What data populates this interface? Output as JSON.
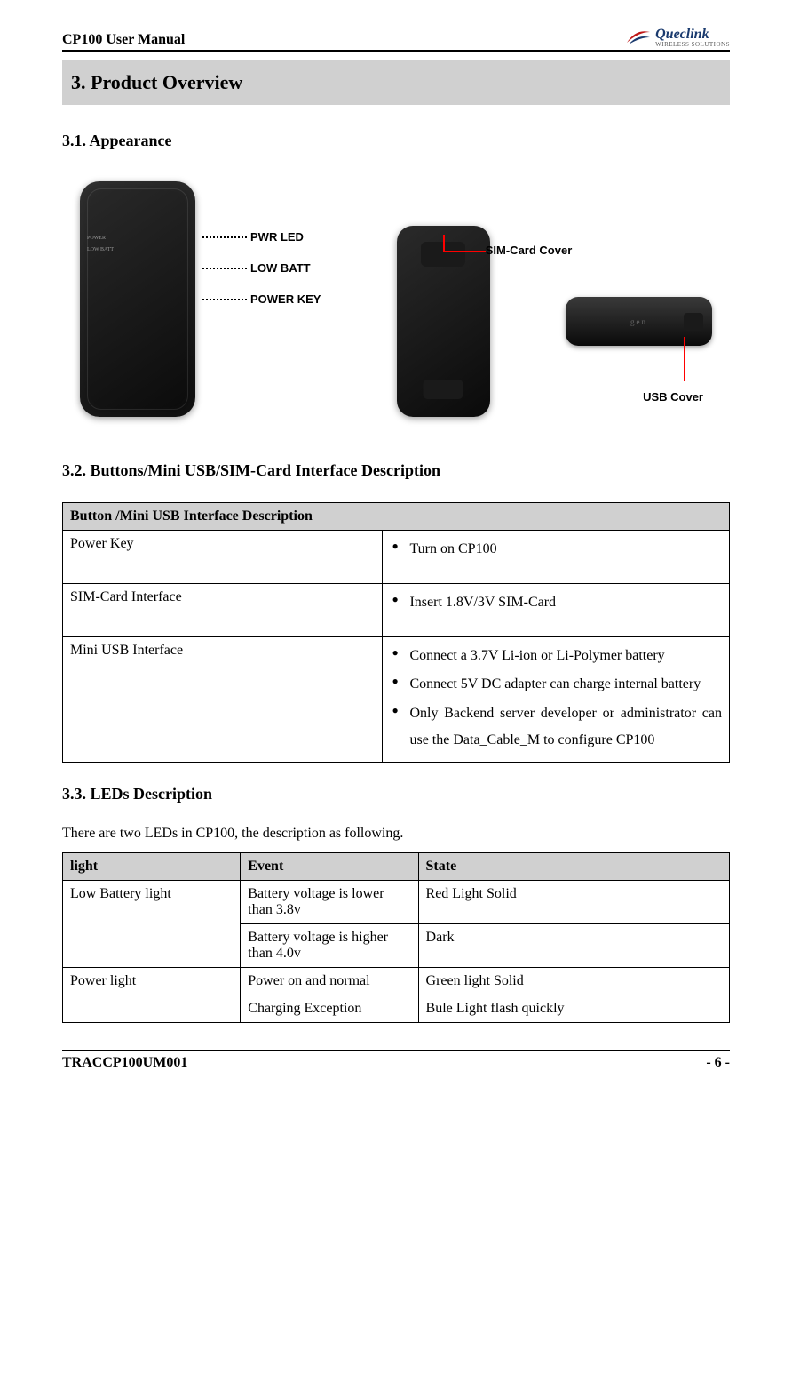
{
  "header": {
    "doc_title": "CP100 User Manual",
    "logo_main": "Queclink",
    "logo_sub": "WIRELESS SOLUTIONS"
  },
  "section": {
    "title": "3. Product Overview",
    "sub1_title": "3.1. Appearance",
    "sub2_title": "3.2. Buttons/Mini USB/SIM-Card Interface Description",
    "sub3_title": "3.3. LEDs Description"
  },
  "appearance": {
    "front": {
      "led1_small": "POWER",
      "led2_small": "LOW BATT",
      "label_pwr": "PWR LED",
      "label_lowbatt": "LOW BATT",
      "label_powerkey": "POWER KEY"
    },
    "back": {
      "sim_label": "SIM-Card Cover"
    },
    "side": {
      "side_text": "gen",
      "usb_label": "USB Cover"
    }
  },
  "interface_table": {
    "header": "Button /Mini USB Interface Description",
    "rows": [
      {
        "name": "Power Key",
        "items": [
          "Turn on CP100"
        ]
      },
      {
        "name": "SIM-Card Interface",
        "items": [
          "Insert 1.8V/3V SIM-Card"
        ]
      },
      {
        "name": "Mini USB Interface",
        "items": [
          "Connect a 3.7V Li-ion or Li-Polymer battery",
          "Connect 5V DC adapter can charge internal battery",
          "Only Backend server developer or administrator can use the Data_Cable_M to configure CP100"
        ]
      }
    ]
  },
  "led_section": {
    "intro": "There are two LEDs in CP100, the description as following.",
    "headers": [
      "light",
      "Event",
      "State"
    ],
    "rows": [
      {
        "light": "Low Battery light",
        "event": "Battery voltage is lower than 3.8v",
        "state": "Red Light Solid",
        "rowspan": 2
      },
      {
        "light": "",
        "event": "Battery voltage is higher than 4.0v",
        "state": "Dark"
      },
      {
        "light": "Power light",
        "event": "Power on and normal",
        "state": "Green light Solid",
        "rowspan": 2
      },
      {
        "light": "",
        "event": "Charging Exception",
        "state": "Bule Light flash quickly"
      }
    ]
  },
  "footer": {
    "left": "TRACCP100UM001",
    "right": "- 6 -"
  },
  "colors": {
    "header_bg": "#d0d0d0",
    "border": "#000000",
    "callout_line": "#ff0000",
    "device_dark": "#1a1a1a"
  }
}
